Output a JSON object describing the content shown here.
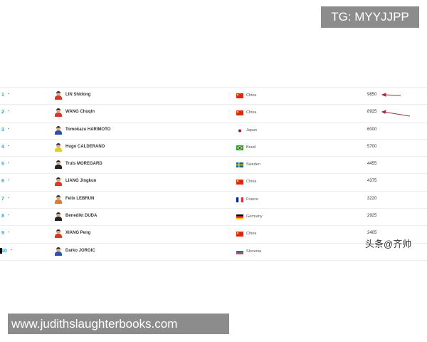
{
  "overlay": {
    "tg": "TG: MYYJJPP",
    "watermark": "头条@齐帅",
    "url": "www.judithslaughterbooks.com"
  },
  "rows": [
    {
      "rank": "1",
      "change": "-",
      "name": "LIN Shidong",
      "country": "China",
      "points": "9850",
      "flag": "china",
      "shirt": "#d63a2a"
    },
    {
      "rank": "2",
      "change": "-",
      "name": "WANG Chuqin",
      "country": "China",
      "points": "8925",
      "flag": "china",
      "shirt": "#d63a2a"
    },
    {
      "rank": "3",
      "change": "-",
      "name": "Tomokazu HARIMOTO",
      "country": "Japan",
      "points": "6000",
      "flag": "japan",
      "shirt": "#2f4fb5"
    },
    {
      "rank": "4",
      "change": "-",
      "name": "Hugo CALDERANO",
      "country": "Brazil",
      "points": "5700",
      "flag": "brazil",
      "shirt": "#d9d22a"
    },
    {
      "rank": "5",
      "change": "-",
      "name": "Truls MOREGARD",
      "country": "Sweden",
      "points": "4455",
      "flag": "sweden",
      "shirt": "#222222"
    },
    {
      "rank": "6",
      "change": "-",
      "name": "LIANG Jingkun",
      "country": "China",
      "points": "4375",
      "flag": "china",
      "shirt": "#d63a2a"
    },
    {
      "rank": "7",
      "change": "-",
      "name": "Felix LEBRUN",
      "country": "France",
      "points": "3220",
      "flag": "france",
      "shirt": "#e07a2a"
    },
    {
      "rank": "8",
      "change": "-",
      "name": "Benedikt DUDA",
      "country": "Germany",
      "points": "2925",
      "flag": "germany",
      "shirt": "#222222"
    },
    {
      "rank": "9",
      "change": "-",
      "name": "XIANG Peng",
      "country": "China",
      "points": "2405",
      "flag": "china",
      "shirt": "#d63a2a"
    },
    {
      "rank": "10",
      "change": "-",
      "name": "Darko JORGIC",
      "country": "Slovenia",
      "points": "",
      "flag": "slovenia",
      "shirt": "#2f4fb5"
    }
  ],
  "colors": {
    "rank": "#2aa7c9",
    "arrow": "#a0303a"
  }
}
